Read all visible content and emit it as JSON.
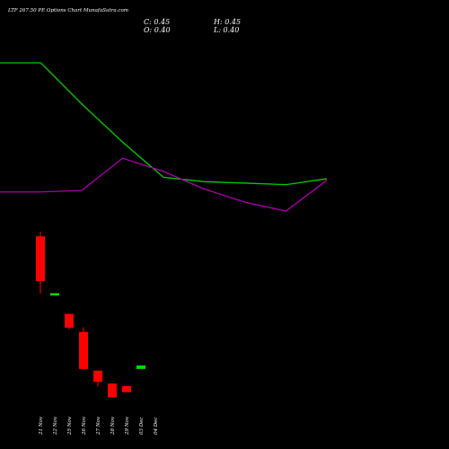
{
  "header": {
    "title": "LTF 267.50  PE Options  Chart MunafaSutra.com",
    "close_label": "C: 0.45",
    "high_label": "H: 0.45",
    "open_label": "O: 0.40",
    "low_label": "L: 0.40"
  },
  "colors": {
    "background": "#000000",
    "up": "#00dd00",
    "down": "#ff0000",
    "ma_green": "#00cc00",
    "ma_magenta": "#aa00aa",
    "text": "#ffffff"
  },
  "chart_data": {
    "type": "candlestick",
    "categories": [
      "21 Nov",
      "22 Nov",
      "25 Nov",
      "26 Nov",
      "27 Nov",
      "28 Nov",
      "29 Nov",
      "03 Dec",
      "04 Dec"
    ],
    "candles": [
      {
        "date": "21 Nov",
        "open": 2.95,
        "high": 3.05,
        "low": 1.85,
        "close": 2.1
      },
      {
        "date": "22 Nov",
        "open": 1.85,
        "high": 1.85,
        "low": 1.85,
        "close": 1.85
      },
      {
        "date": "25 Nov",
        "open": 1.45,
        "high": 1.45,
        "low": 1.15,
        "close": 1.2
      },
      {
        "date": "26 Nov",
        "open": 1.1,
        "high": 1.2,
        "low": 0.4,
        "close": 0.4
      },
      {
        "date": "27 Nov",
        "open": 0.35,
        "high": 0.35,
        "low": 0.05,
        "close": 0.15
      },
      {
        "date": "28 Nov",
        "open": 0.1,
        "high": 0.1,
        "low": -0.15,
        "close": -0.15
      },
      {
        "date": "29 Nov",
        "open": 0.05,
        "high": 0.05,
        "low": -0.05,
        "close": -0.05
      },
      {
        "date": "03 Dec",
        "open": 0.4,
        "high": 0.45,
        "low": 0.4,
        "close": 0.45
      }
    ],
    "series": [
      {
        "values": [
          0.7,
          0.7,
          0.42,
          0.16,
          -0.08,
          -0.11,
          -0.12,
          -0.13,
          -0.09
        ]
      },
      {
        "values": [
          -0.18,
          -0.18,
          -0.17,
          0.05,
          -0.04,
          -0.16,
          -0.25,
          -0.31,
          -0.1
        ]
      }
    ]
  }
}
